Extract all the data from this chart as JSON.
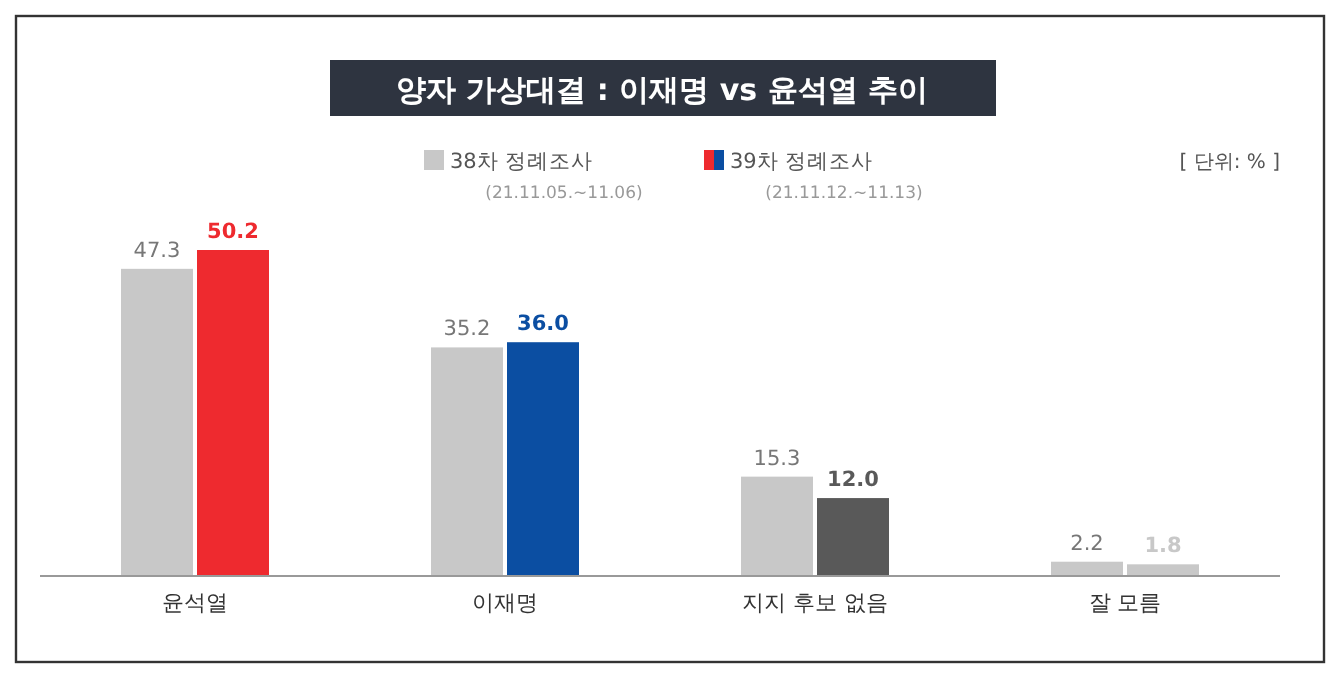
{
  "chart_data": {
    "type": "bar",
    "title": "양자 가상대결 : 이재명 vs 윤석열 추이",
    "categories": [
      "윤석열",
      "이재명",
      "지지 후보 없음",
      "잘 모름"
    ],
    "series": [
      {
        "name": "38차 정례조사",
        "color": "#c8c8c8",
        "values": [
          47.3,
          35.2,
          15.3,
          2.2
        ],
        "value_labels": [
          "47.3",
          "35.2",
          "15.3",
          "2.2"
        ]
      },
      {
        "name": "39차 정례조사",
        "colors": [
          "#ee2a2f",
          "#0b4ea2",
          "#595959",
          "#c8c8c8"
        ],
        "values": [
          50.2,
          36.0,
          12.0,
          1.8
        ],
        "value_labels": [
          "50.2",
          "36.0",
          "12.0",
          "1.8"
        ]
      }
    ],
    "legend": "top",
    "annotations": [
      "(21.11.05.~11.06)",
      "(21.11.12.~11.13)",
      "[ 단위: % ]"
    ]
  }
}
